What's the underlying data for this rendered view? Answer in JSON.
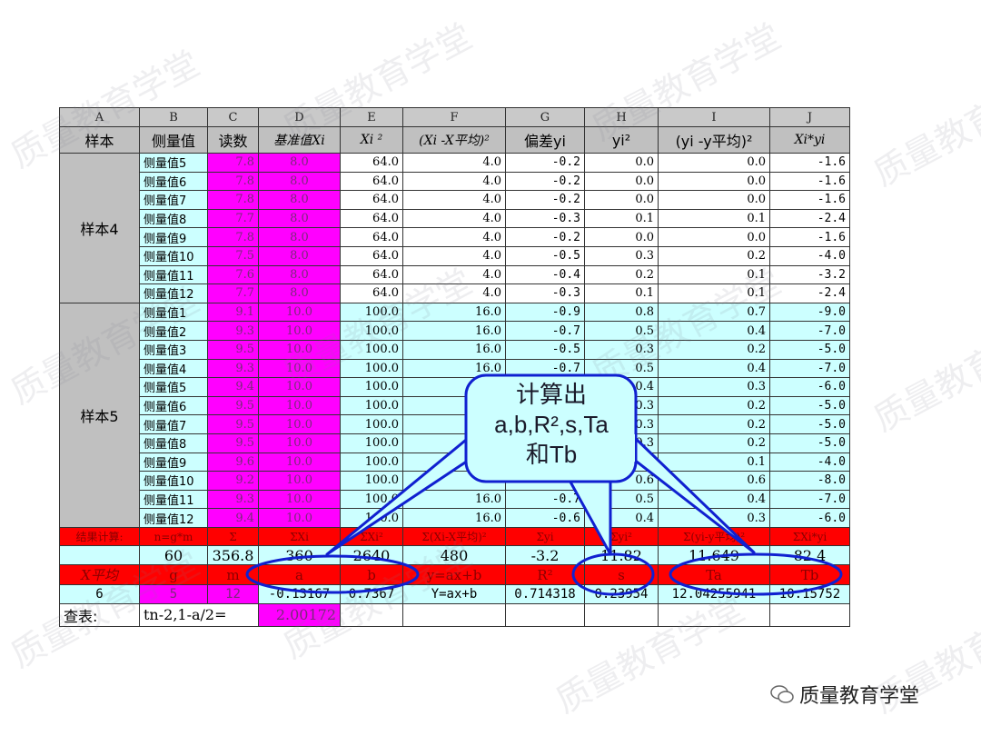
{
  "watermark": "质量教育学堂",
  "footer": {
    "icon": "wechat-icon",
    "text": "质量教育学堂"
  },
  "colors": {
    "magenta": "#ff00ff",
    "cyan": "#ccffff",
    "red": "#ff0000",
    "gray": "#c0c0c0",
    "callout_border": "#1020d0"
  },
  "callout": {
    "line1": "计算出",
    "line2": "a,b,R²,s,Ta",
    "line3": "和Tb"
  },
  "column_letters": [
    "A",
    "B",
    "C",
    "D",
    "E",
    "F",
    "G",
    "H",
    "I",
    "J"
  ],
  "headers": [
    "样本",
    "侧量值",
    "读数",
    "基准值Xi",
    "Xi ²",
    "(Xi -X平均)²",
    "偏差yi",
    "yi²",
    "(yi -y平均)²",
    "Xi*yi"
  ],
  "samples": [
    {
      "label": "样本4",
      "rows": [
        [
          "侧量值5",
          "7.8",
          "8.0",
          "64.0",
          "4.0",
          "-0.2",
          "0.0",
          "0.0",
          "-1.6"
        ],
        [
          "侧量值6",
          "7.8",
          "8.0",
          "64.0",
          "4.0",
          "-0.2",
          "0.0",
          "0.0",
          "-1.6"
        ],
        [
          "侧量值7",
          "7.8",
          "8.0",
          "64.0",
          "4.0",
          "-0.2",
          "0.0",
          "0.0",
          "-1.6"
        ],
        [
          "侧量值8",
          "7.7",
          "8.0",
          "64.0",
          "4.0",
          "-0.3",
          "0.1",
          "0.1",
          "-2.4"
        ],
        [
          "侧量值9",
          "7.8",
          "8.0",
          "64.0",
          "4.0",
          "-0.2",
          "0.0",
          "0.0",
          "-1.6"
        ],
        [
          "侧量值10",
          "7.5",
          "8.0",
          "64.0",
          "4.0",
          "-0.5",
          "0.3",
          "0.2",
          "-4.0"
        ],
        [
          "侧量值11",
          "7.6",
          "8.0",
          "64.0",
          "4.0",
          "-0.4",
          "0.2",
          "0.1",
          "-3.2"
        ],
        [
          "侧量值12",
          "7.7",
          "8.0",
          "64.0",
          "4.0",
          "-0.3",
          "0.1",
          "0.1",
          "-2.4"
        ]
      ]
    },
    {
      "label": "样本5",
      "rows": [
        [
          "侧量值1",
          "9.1",
          "10.0",
          "100.0",
          "16.0",
          "-0.9",
          "0.8",
          "0.7",
          "-9.0"
        ],
        [
          "侧量值2",
          "9.3",
          "10.0",
          "100.0",
          "16.0",
          "-0.7",
          "0.5",
          "0.4",
          "-7.0"
        ],
        [
          "侧量值3",
          "9.5",
          "10.0",
          "100.0",
          "16.0",
          "-0.5",
          "0.3",
          "0.2",
          "-5.0"
        ],
        [
          "侧量值4",
          "9.3",
          "10.0",
          "100.0",
          "16.0",
          "-0.7",
          "0.5",
          "0.4",
          "-7.0"
        ],
        [
          "侧量值5",
          "9.4",
          "10.0",
          "100.0",
          "",
          "",
          "0.4",
          "0.3",
          "-6.0"
        ],
        [
          "侧量值6",
          "9.5",
          "10.0",
          "100.0",
          "",
          "",
          "0.3",
          "0.2",
          "-5.0"
        ],
        [
          "侧量值7",
          "9.5",
          "10.0",
          "100.0",
          "",
          "",
          "0.3",
          "0.2",
          "-5.0"
        ],
        [
          "侧量值8",
          "9.5",
          "10.0",
          "100.0",
          "",
          "",
          "0.3",
          "0.2",
          "-5.0"
        ],
        [
          "侧量值9",
          "9.6",
          "10.0",
          "100.0",
          "",
          "",
          "",
          "0.1",
          "-4.0"
        ],
        [
          "侧量值10",
          "9.2",
          "10.0",
          "100.0",
          "",
          "",
          "0.6",
          "0.6",
          "-8.0"
        ],
        [
          "侧量值11",
          "9.3",
          "10.0",
          "100.0",
          "16.0",
          "-0.7",
          "0.5",
          "0.4",
          "-7.0"
        ],
        [
          "侧量值12",
          "9.4",
          "10.0",
          "100.0",
          "16.0",
          "-0.6",
          "0.4",
          "0.3",
          "-6.0"
        ]
      ]
    }
  ],
  "result_header": [
    "结果计算:",
    "n=g*m",
    "Σ",
    "ΣXi",
    "ΣXi²",
    "Σ(Xi-X平均)²",
    "Σyi",
    "Σyi²",
    "Σ(yi-y平均)²",
    "ΣXi*yi"
  ],
  "result_values": [
    "",
    "60",
    "356.8",
    "360",
    "2640",
    "480",
    "-3.2",
    "11.82",
    "11.649",
    "82.4"
  ],
  "param_header": [
    "X平均",
    "g",
    "m",
    "a",
    "b",
    "y=ax+b",
    "R²",
    "s",
    "Ta",
    "Tb"
  ],
  "param_values": [
    "6",
    "5",
    "12",
    "-0.13167",
    "0.7367",
    "Y=ax+b",
    "0.714318",
    "0.23954",
    "12.04255941",
    "10.15752"
  ],
  "lookup": {
    "label": "查表:",
    "formula": "tn-2,1-a/2=",
    "value": "2.00172"
  }
}
